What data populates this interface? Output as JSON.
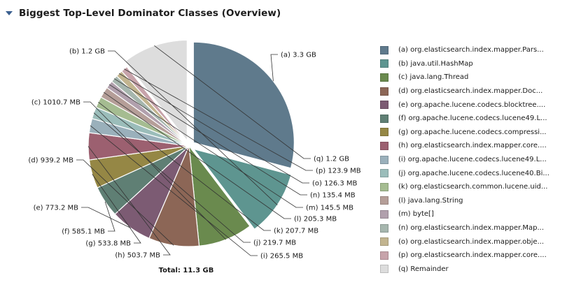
{
  "header": {
    "title": "Biggest Top-Level Dominator Classes (Overview)"
  },
  "chart_data": {
    "type": "pie",
    "unit": "MB",
    "total_label": "Total: 11.3 GB",
    "slices": [
      {
        "key": "(a)",
        "value": 3379.2,
        "label": "(a)  3.3 GB",
        "legend": "(a)  org.elasticsearch.index.mapper.Pars...",
        "color": "#5f7a8c",
        "exploded": true
      },
      {
        "key": "(b)",
        "value": 1228.8,
        "label": "(b)  1.2 GB",
        "legend": "(b)  java.util.HashMap",
        "color": "#5e9590",
        "exploded": true
      },
      {
        "key": "(c)",
        "value": 1010.7,
        "label": "(c)  1010.7 MB",
        "legend": "(c)  java.lang.Thread",
        "color": "#6a8a4e"
      },
      {
        "key": "(d)",
        "value": 939.2,
        "label": "(d)  939.2 MB",
        "legend": "(d)  org.elasticsearch.index.mapper.Doc...",
        "color": "#8c6656"
      },
      {
        "key": "(e)",
        "value": 773.2,
        "label": "(e)  773.2 MB",
        "legend": "(e)  org.apache.lucene.codecs.blocktree....",
        "color": "#7c5b73"
      },
      {
        "key": "(f)",
        "value": 585.1,
        "label": "(f)  585.1 MB",
        "legend": "(f)  org.apache.lucene.codecs.lucene49.L...",
        "color": "#5f7f74"
      },
      {
        "key": "(g)",
        "value": 533.8,
        "label": "(g)  533.8 MB",
        "legend": "(g)  org.apache.lucene.codecs.compressi...",
        "color": "#958745"
      },
      {
        "key": "(h)",
        "value": 503.7,
        "label": "(h)  503.7 MB",
        "legend": "(h)  org.elasticsearch.index.mapper.core....",
        "color": "#9c6070"
      },
      {
        "key": "(i)",
        "value": 265.5,
        "label": "(i)  265.5 MB",
        "legend": "(i)  org.apache.lucene.codecs.lucene49.L...",
        "color": "#9ab0bb"
      },
      {
        "key": "(j)",
        "value": 219.7,
        "label": "(j)  219.7 MB",
        "legend": "(j)  org.apache.lucene.codecs.lucene40.Bi...",
        "color": "#9bbdba"
      },
      {
        "key": "(k)",
        "value": 207.7,
        "label": "(k)  207.7 MB",
        "legend": "(k)  org.elasticsearch.common.lucene.uid...",
        "color": "#a5bc91"
      },
      {
        "key": "(l)",
        "value": 205.3,
        "label": "(l)  205.3 MB",
        "legend": "(l)  java.lang.String",
        "color": "#b59e98"
      },
      {
        "key": "(m)",
        "value": 145.5,
        "label": "(m)  145.5 MB",
        "legend": "(m)  byte[]",
        "color": "#b1a0ad"
      },
      {
        "key": "(n)",
        "value": 135.4,
        "label": "(n)  135.4 MB",
        "legend": "(n)  org.elasticsearch.index.mapper.Map...",
        "color": "#a6b6ae"
      },
      {
        "key": "(o)",
        "value": 126.3,
        "label": "(o)  126.3 MB",
        "legend": "(o)  org.elasticsearch.index.mapper.obje...",
        "color": "#c2b48f"
      },
      {
        "key": "(p)",
        "value": 123.9,
        "label": "(p)  123.9 MB",
        "legend": "(p)  org.elasticsearch.index.mapper.core....",
        "color": "#c7a3aa"
      },
      {
        "key": "(q)",
        "value": 1228.8,
        "label": "(q)  1.2 GB",
        "legend": "(q)  Remainder",
        "color": "#dddddd",
        "exploded": true
      }
    ]
  }
}
